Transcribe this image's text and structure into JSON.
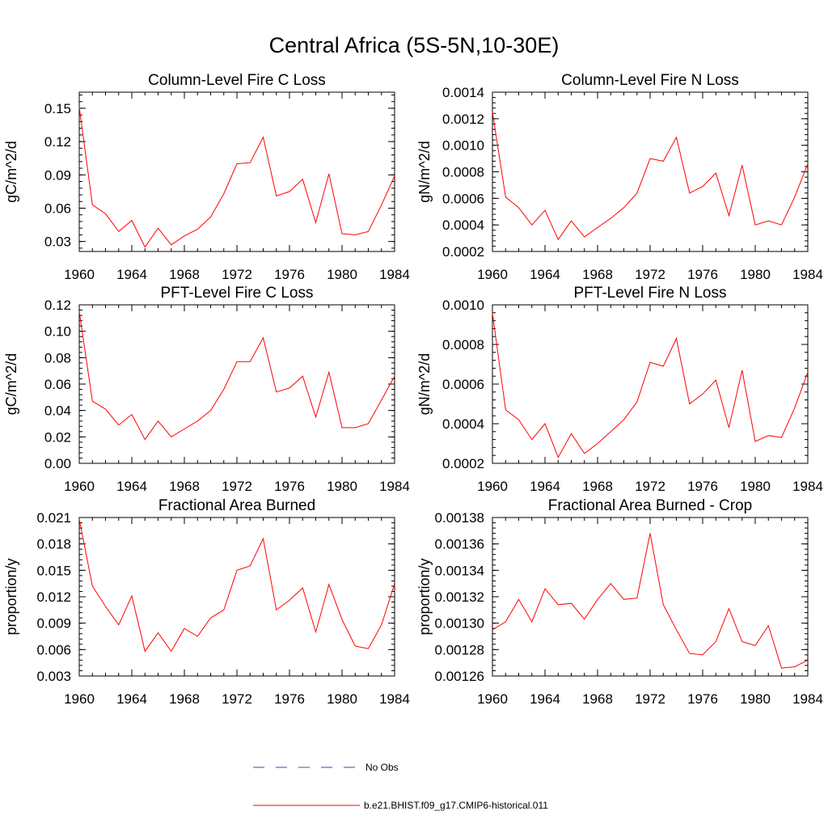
{
  "title": "Central Africa (5S-5N,10-30E)",
  "colors": {
    "model": "#ff0000",
    "obs": "#3f3fc0",
    "axis": "#000000"
  },
  "legend": {
    "obs_label": "No Obs",
    "model_label": "b.e21.BHIST.f09_g17.CMIP6-historical.011"
  },
  "chart_data": [
    {
      "type": "line",
      "title": "Column-Level Fire C Loss",
      "ylabel": "gC/m^2/d",
      "xlim": [
        1960,
        1984
      ],
      "ylim": [
        0.021,
        0.1645
      ],
      "xticks": [
        "1960",
        "1964",
        "1968",
        "1972",
        "1976",
        "1980",
        "1984"
      ],
      "yticks": [
        "0.03",
        "0.06",
        "0.09",
        "0.12",
        "0.15"
      ],
      "x": [
        1960,
        1961,
        1962,
        1963,
        1964,
        1965,
        1966,
        1967,
        1968,
        1969,
        1970,
        1971,
        1972,
        1973,
        1974,
        1975,
        1976,
        1977,
        1978,
        1979,
        1980,
        1981,
        1982,
        1983,
        1984
      ],
      "series": [
        {
          "values": [
            0.151,
            0.063,
            0.055,
            0.039,
            0.049,
            0.025,
            0.042,
            0.027,
            0.035,
            0.041,
            0.052,
            0.073,
            0.1,
            0.101,
            0.124,
            0.071,
            0.075,
            0.086,
            0.047,
            0.091,
            0.037,
            0.036,
            0.039,
            0.063,
            0.089
          ]
        }
      ]
    },
    {
      "type": "line",
      "title": "Column-Level Fire N Loss",
      "ylabel": "gN/m^2/d",
      "xlim": [
        1960,
        1984
      ],
      "ylim": [
        0.0002,
        0.0014
      ],
      "xticks": [
        "1960",
        "1964",
        "1968",
        "1972",
        "1976",
        "1980",
        "1984"
      ],
      "yticks": [
        "0.0002",
        "0.0004",
        "0.0006",
        "0.0008",
        "0.0010",
        "0.0012",
        "0.0014"
      ],
      "x": [
        1960,
        1961,
        1962,
        1963,
        1964,
        1965,
        1966,
        1967,
        1968,
        1969,
        1970,
        1971,
        1972,
        1973,
        1974,
        1975,
        1976,
        1977,
        1978,
        1979,
        1980,
        1981,
        1982,
        1983,
        1984
      ],
      "series": [
        {
          "values": [
            0.00125,
            0.00061,
            0.00053,
            0.0004,
            0.00051,
            0.00029,
            0.00043,
            0.00031,
            0.00038,
            0.00045,
            0.00053,
            0.00064,
            0.0009,
            0.00088,
            0.00106,
            0.00064,
            0.00069,
            0.00079,
            0.00047,
            0.00085,
            0.0004,
            0.00043,
            0.0004,
            0.00061,
            0.00086
          ]
        }
      ]
    },
    {
      "type": "line",
      "title": "PFT-Level Fire C Loss",
      "ylabel": "gC/m^2/d",
      "xlim": [
        1960,
        1984
      ],
      "ylim": [
        0,
        0.12
      ],
      "xticks": [
        "1960",
        "1964",
        "1968",
        "1972",
        "1976",
        "1980",
        "1984"
      ],
      "yticks": [
        "0.00",
        "0.02",
        "0.04",
        "0.06",
        "0.08",
        "0.10",
        "0.12"
      ],
      "x": [
        1960,
        1961,
        1962,
        1963,
        1964,
        1965,
        1966,
        1967,
        1968,
        1969,
        1970,
        1971,
        1972,
        1973,
        1974,
        1975,
        1976,
        1977,
        1978,
        1979,
        1980,
        1981,
        1982,
        1983,
        1984
      ],
      "series": [
        {
          "values": [
            0.115,
            0.047,
            0.041,
            0.029,
            0.037,
            0.018,
            0.032,
            0.02,
            0.026,
            0.032,
            0.04,
            0.056,
            0.077,
            0.077,
            0.095,
            0.054,
            0.057,
            0.066,
            0.035,
            0.069,
            0.027,
            0.027,
            0.03,
            0.048,
            0.066
          ]
        }
      ]
    },
    {
      "type": "line",
      "title": "PFT-Level Fire N Loss",
      "ylabel": "gN/m^2/d",
      "xlim": [
        1960,
        1984
      ],
      "ylim": [
        0.0002,
        0.001
      ],
      "xticks": [
        "1960",
        "1964",
        "1968",
        "1972",
        "1976",
        "1980",
        "1984"
      ],
      "yticks": [
        "0.0002",
        "0.0004",
        "0.0006",
        "0.0008",
        "0.0010"
      ],
      "x": [
        1960,
        1961,
        1962,
        1963,
        1964,
        1965,
        1966,
        1967,
        1968,
        1969,
        1970,
        1971,
        1972,
        1973,
        1974,
        1975,
        1976,
        1977,
        1978,
        1979,
        1980,
        1981,
        1982,
        1983,
        1984
      ],
      "series": [
        {
          "values": [
            0.00096,
            0.00047,
            0.00042,
            0.00032,
            0.0004,
            0.00023,
            0.00035,
            0.00025,
            0.0003,
            0.00036,
            0.00042,
            0.00051,
            0.00071,
            0.00069,
            0.00083,
            0.0005,
            0.00055,
            0.00062,
            0.00038,
            0.00067,
            0.00031,
            0.00034,
            0.00033,
            0.00048,
            0.00066
          ]
        }
      ]
    },
    {
      "type": "line",
      "title": "Fractional Area Burned",
      "ylabel": "proportion/y",
      "xlim": [
        1960,
        1984
      ],
      "ylim": [
        0.003,
        0.021
      ],
      "xticks": [
        "1960",
        "1964",
        "1968",
        "1972",
        "1976",
        "1980",
        "1984"
      ],
      "yticks": [
        "0.003",
        "0.006",
        "0.009",
        "0.012",
        "0.015",
        "0.018",
        "0.021"
      ],
      "x": [
        1960,
        1961,
        1962,
        1963,
        1964,
        1965,
        1966,
        1967,
        1968,
        1969,
        1970,
        1971,
        1972,
        1973,
        1974,
        1975,
        1976,
        1977,
        1978,
        1979,
        1980,
        1981,
        1982,
        1983,
        1984
      ],
      "series": [
        {
          "values": [
            0.0208,
            0.0132,
            0.0109,
            0.0088,
            0.0121,
            0.0058,
            0.0079,
            0.0058,
            0.0084,
            0.0075,
            0.0096,
            0.0105,
            0.015,
            0.0155,
            0.0186,
            0.0105,
            0.0116,
            0.013,
            0.008,
            0.0134,
            0.0094,
            0.0064,
            0.0061,
            0.0088,
            0.0135
          ]
        }
      ]
    },
    {
      "type": "line",
      "title": "Fractional Area Burned - Crop",
      "ylabel": "proportion/y",
      "xlim": [
        1960,
        1984
      ],
      "ylim": [
        0.00126,
        0.00138
      ],
      "xticks": [
        "1960",
        "1964",
        "1968",
        "1972",
        "1976",
        "1980",
        "1984"
      ],
      "yticks": [
        "0.00126",
        "0.00128",
        "0.00130",
        "0.00132",
        "0.00134",
        "0.00136",
        "0.00138"
      ],
      "x": [
        1960,
        1961,
        1962,
        1963,
        1964,
        1965,
        1966,
        1967,
        1968,
        1969,
        1970,
        1971,
        1972,
        1973,
        1974,
        1975,
        1976,
        1977,
        1978,
        1979,
        1980,
        1981,
        1982,
        1983,
        1984
      ],
      "series": [
        {
          "values": [
            0.001295,
            0.001301,
            0.001318,
            0.001301,
            0.001326,
            0.001314,
            0.001315,
            0.001303,
            0.001318,
            0.00133,
            0.001318,
            0.001319,
            0.001368,
            0.001314,
            0.001295,
            0.001277,
            0.001276,
            0.001286,
            0.001311,
            0.001286,
            0.001283,
            0.001298,
            0.001266,
            0.001267,
            0.001272
          ]
        }
      ]
    }
  ]
}
